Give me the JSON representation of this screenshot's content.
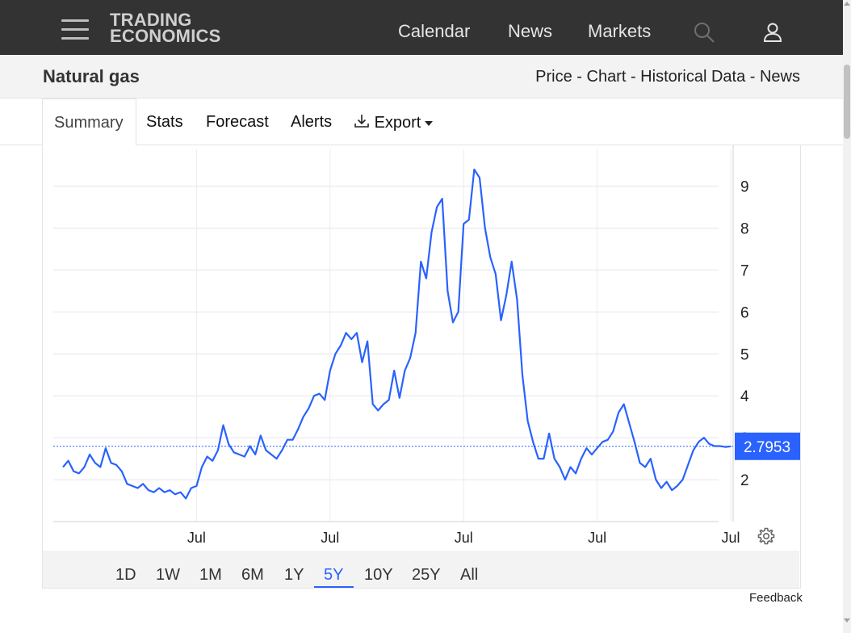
{
  "header": {
    "logo_line1": "TRADING",
    "logo_line2": "ECONOMICS",
    "nav": [
      "Calendar",
      "News",
      "Markets"
    ]
  },
  "page": {
    "title": "Natural gas",
    "breadcrumbs": "Price - Chart - Historical Data - News"
  },
  "tabs": [
    "Summary",
    "Stats",
    "Forecast",
    "Alerts",
    "Export"
  ],
  "ranges": [
    "1D",
    "1W",
    "1M",
    "6M",
    "1Y",
    "5Y",
    "10Y",
    "25Y",
    "All"
  ],
  "active_range": "5Y",
  "feedback": "Feedback",
  "colors": {
    "line": "#2962ff",
    "price_label_bg": "#2962ff",
    "header_bg": "#333333"
  },
  "chart_data": {
    "type": "line",
    "x_tick_labels": [
      "Jul",
      "Jul",
      "Jul",
      "Jul",
      "Jul"
    ],
    "y_tick_labels": [
      "2",
      "3",
      "4",
      "5",
      "6",
      "7",
      "8",
      "9"
    ],
    "ylim": [
      1,
      9.8
    ],
    "grid": true,
    "current_value": 2.7953,
    "current_value_label": "2.7953",
    "series": [
      {
        "x": [
          2019.5,
          2019.54,
          2019.58,
          2019.62,
          2019.66,
          2019.7,
          2019.74,
          2019.78,
          2019.82,
          2019.86,
          2019.9,
          2019.94,
          2019.98,
          2020.02,
          2020.06,
          2020.1,
          2020.14,
          2020.18,
          2020.22,
          2020.26,
          2020.3,
          2020.34,
          2020.38,
          2020.42,
          2020.46,
          2020.5,
          2020.54,
          2020.58,
          2020.62,
          2020.66,
          2020.7,
          2020.74,
          2020.78,
          2020.82,
          2020.86,
          2020.9,
          2020.94,
          2020.98,
          2021.02,
          2021.06,
          2021.1,
          2021.14,
          2021.18,
          2021.22,
          2021.26,
          2021.3,
          2021.34,
          2021.38,
          2021.42,
          2021.46,
          2021.5,
          2021.54,
          2021.58,
          2021.62,
          2021.66,
          2021.7,
          2021.74,
          2021.78,
          2021.82,
          2021.86,
          2021.9,
          2021.94,
          2021.98,
          2022.02,
          2022.06,
          2022.1,
          2022.14,
          2022.18,
          2022.22,
          2022.26,
          2022.3,
          2022.34,
          2022.38,
          2022.42,
          2022.46,
          2022.5,
          2022.54,
          2022.58,
          2022.62,
          2022.66,
          2022.7,
          2022.74,
          2022.78,
          2022.82,
          2022.86,
          2022.9,
          2022.94,
          2022.98,
          2023.02,
          2023.06,
          2023.1,
          2023.14,
          2023.18,
          2023.22,
          2023.26,
          2023.3,
          2023.34,
          2023.38,
          2023.42,
          2023.46,
          2023.5,
          2023.54,
          2023.58,
          2023.62,
          2023.66,
          2023.7,
          2023.74,
          2023.78,
          2023.82,
          2023.86,
          2023.9,
          2023.94,
          2023.98,
          2024.02,
          2024.06,
          2024.1,
          2024.14,
          2024.18,
          2024.22,
          2024.26,
          2024.3,
          2024.34,
          2024.38,
          2024.42,
          2024.46,
          2024.5
        ],
        "values": [
          2.3,
          2.45,
          2.2,
          2.15,
          2.3,
          2.6,
          2.4,
          2.3,
          2.75,
          2.4,
          2.35,
          2.2,
          1.9,
          1.85,
          1.8,
          1.9,
          1.75,
          1.7,
          1.8,
          1.7,
          1.75,
          1.65,
          1.7,
          1.55,
          1.8,
          1.85,
          2.3,
          2.55,
          2.45,
          2.7,
          3.3,
          2.85,
          2.65,
          2.6,
          2.55,
          2.8,
          2.6,
          3.05,
          2.7,
          2.6,
          2.5,
          2.7,
          2.95,
          2.95,
          3.2,
          3.5,
          3.7,
          4.0,
          4.05,
          3.9,
          4.6,
          5.0,
          5.2,
          5.5,
          5.35,
          5.5,
          4.8,
          5.3,
          3.8,
          3.65,
          3.8,
          3.9,
          4.6,
          3.95,
          4.6,
          4.9,
          5.5,
          7.2,
          6.8,
          7.9,
          8.5,
          8.7,
          6.5,
          5.75,
          6.0,
          8.1,
          8.2,
          9.4,
          9.2,
          8.0,
          7.3,
          6.9,
          5.8,
          6.4,
          7.2,
          6.3,
          4.5,
          3.4,
          2.9,
          2.5,
          2.5,
          3.1,
          2.5,
          2.3,
          2.0,
          2.3,
          2.15,
          2.5,
          2.75,
          2.6,
          2.75,
          2.9,
          2.95,
          3.15,
          3.6,
          3.8,
          3.35,
          2.9,
          2.4,
          2.3,
          2.5,
          2.0,
          1.8,
          1.95,
          1.75,
          1.85,
          2.0,
          2.35,
          2.7,
          2.9,
          3.0,
          2.85,
          2.8,
          2.8,
          2.78,
          2.7953
        ]
      }
    ]
  }
}
